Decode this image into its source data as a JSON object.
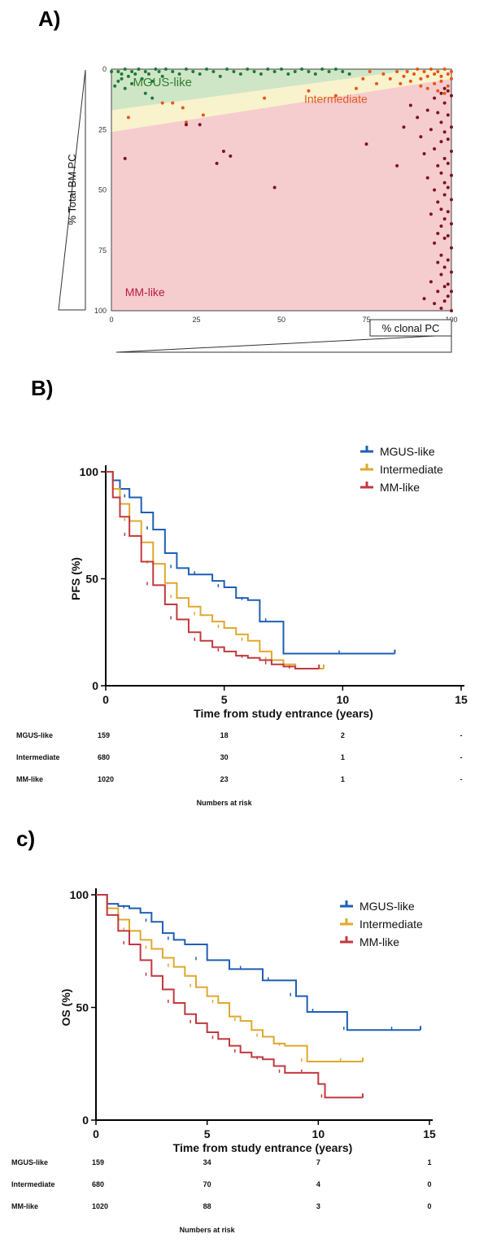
{
  "chart_data": [
    {
      "type": "scatter",
      "panel_label": "A)",
      "xlabel": "% clonal PC",
      "ylabel": "% Total BM PC",
      "xlim": [
        0,
        100
      ],
      "ylim": [
        0,
        100
      ],
      "y_inverted": true,
      "x_ticks": [
        "0",
        "25",
        "50",
        "75",
        "100"
      ],
      "y_ticks": [
        "0",
        "25",
        "50",
        "75",
        "100"
      ],
      "regions": [
        {
          "name": "MGUS-like",
          "color": "#cfe6c6",
          "text_color": "#2e7d32"
        },
        {
          "name": "Intermediate",
          "color": "#f8f3cc",
          "text_color": "#e25a1c"
        },
        {
          "name": "MM-like",
          "color": "#f6cdcf",
          "text_color": "#b71c3c"
        }
      ],
      "series": [
        {
          "name": "MGUS-like",
          "color": "#1f7a3c",
          "points": [
            [
              0,
              1
            ],
            [
              2,
              1
            ],
            [
              3,
              2
            ],
            [
              4,
              0
            ],
            [
              5,
              3
            ],
            [
              6,
              1
            ],
            [
              7,
              2
            ],
            [
              8,
              0
            ],
            [
              9,
              4
            ],
            [
              10,
              1
            ],
            [
              11,
              2
            ],
            [
              12,
              5
            ],
            [
              13,
              0
            ],
            [
              14,
              1
            ],
            [
              15,
              3
            ],
            [
              16,
              0
            ],
            [
              18,
              1
            ],
            [
              20,
              2
            ],
            [
              22,
              0
            ],
            [
              24,
              1
            ],
            [
              26,
              2
            ],
            [
              28,
              0
            ],
            [
              30,
              1
            ],
            [
              32,
              3
            ],
            [
              34,
              0
            ],
            [
              36,
              1
            ],
            [
              38,
              2
            ],
            [
              40,
              0
            ],
            [
              42,
              1
            ],
            [
              44,
              2
            ],
            [
              46,
              0
            ],
            [
              48,
              1
            ],
            [
              50,
              0
            ],
            [
              52,
              2
            ],
            [
              54,
              1
            ],
            [
              56,
              0
            ],
            [
              58,
              1
            ],
            [
              60,
              2
            ],
            [
              62,
              0
            ],
            [
              64,
              1
            ],
            [
              66,
              0
            ],
            [
              68,
              1
            ],
            [
              70,
              2
            ],
            [
              2,
              5
            ],
            [
              4,
              8
            ],
            [
              10,
              10
            ],
            [
              12,
              12
            ],
            [
              1,
              7
            ],
            [
              3,
              4
            ],
            [
              6,
              6
            ]
          ]
        },
        {
          "name": "Intermediate",
          "color": "#e8541a",
          "points": [
            [
              5,
              20
            ],
            [
              15,
              14
            ],
            [
              18,
              14
            ],
            [
              21,
              16
            ],
            [
              22,
              22
            ],
            [
              27,
              19
            ],
            [
              45,
              12
            ],
            [
              58,
              9
            ],
            [
              66,
              11
            ],
            [
              72,
              8
            ],
            [
              74,
              4
            ],
            [
              76,
              1
            ],
            [
              78,
              6
            ],
            [
              80,
              2
            ],
            [
              82,
              4
            ],
            [
              84,
              1
            ],
            [
              85,
              6
            ],
            [
              86,
              3
            ],
            [
              87,
              1
            ],
            [
              88,
              5
            ],
            [
              89,
              2
            ],
            [
              90,
              0
            ],
            [
              91,
              4
            ],
            [
              92,
              1
            ],
            [
              93,
              3
            ],
            [
              94,
              0
            ],
            [
              95,
              2
            ],
            [
              96,
              1
            ],
            [
              97,
              3
            ],
            [
              98,
              0
            ],
            [
              99,
              2
            ],
            [
              100,
              1
            ],
            [
              95,
              6
            ],
            [
              97,
              5
            ],
            [
              99,
              7
            ],
            [
              93,
              8
            ],
            [
              96,
              9
            ],
            [
              98,
              10
            ],
            [
              100,
              4
            ],
            [
              91,
              7
            ]
          ]
        },
        {
          "name": "MM-like",
          "color": "#7e1222",
          "points": [
            [
              4,
              37
            ],
            [
              22,
              23
            ],
            [
              26,
              23
            ],
            [
              31,
              39
            ],
            [
              33,
              34
            ],
            [
              35,
              36
            ],
            [
              48,
              49
            ],
            [
              75,
              31
            ],
            [
              84,
              40
            ],
            [
              86,
              24
            ],
            [
              88,
              15
            ],
            [
              90,
              20
            ],
            [
              91,
              28
            ],
            [
              92,
              35
            ],
            [
              92,
              95
            ],
            [
              93,
              17
            ],
            [
              93,
              45
            ],
            [
              94,
              25
            ],
            [
              94,
              60
            ],
            [
              94,
              88
            ],
            [
              95,
              12
            ],
            [
              95,
              33
            ],
            [
              95,
              50
            ],
            [
              95,
              72
            ],
            [
              95,
              97
            ],
            [
              96,
              18
            ],
            [
              96,
              40
            ],
            [
              96,
              55
            ],
            [
              96,
              68
            ],
            [
              96,
              80
            ],
            [
              96,
              92
            ],
            [
              97,
              10
            ],
            [
              97,
              22
            ],
            [
              97,
              30
            ],
            [
              97,
              43
            ],
            [
              97,
              58
            ],
            [
              97,
              65
            ],
            [
              97,
              77
            ],
            [
              97,
              85
            ],
            [
              97,
              99
            ],
            [
              98,
              8
            ],
            [
              98,
              14
            ],
            [
              98,
              26
            ],
            [
              98,
              37
            ],
            [
              98,
              47
            ],
            [
              98,
              52
            ],
            [
              98,
              62
            ],
            [
              98,
              70
            ],
            [
              98,
              82
            ],
            [
              98,
              90
            ],
            [
              98,
              96
            ],
            [
              99,
              9
            ],
            [
              99,
              19
            ],
            [
              99,
              29
            ],
            [
              99,
              39
            ],
            [
              99,
              49
            ],
            [
              99,
              59
            ],
            [
              99,
              69
            ],
            [
              99,
              79
            ],
            [
              99,
              89
            ],
            [
              99,
              94
            ],
            [
              100,
              11
            ],
            [
              100,
              24
            ],
            [
              100,
              34
            ],
            [
              100,
              44
            ],
            [
              100,
              54
            ],
            [
              100,
              64
            ],
            [
              100,
              74
            ],
            [
              100,
              84
            ],
            [
              100,
              92
            ],
            [
              100,
              100
            ]
          ]
        }
      ]
    },
    {
      "type": "line",
      "panel_label": "B)",
      "xlabel": "Time from study entrance (years)",
      "ylabel": "PFS (%)",
      "xlim": [
        0,
        15
      ],
      "ylim": [
        0,
        100
      ],
      "x_ticks": [
        "0",
        "5",
        "10",
        "15"
      ],
      "y_ticks": [
        "0",
        "50",
        "100"
      ],
      "legend_position": "top-right",
      "series": [
        {
          "name": "MGUS-like",
          "color": "#1f5fb5",
          "x": [
            0,
            0.3,
            0.6,
            1.0,
            1.5,
            2.0,
            2.5,
            3.0,
            3.5,
            4.0,
            4.5,
            5.0,
            5.5,
            6.0,
            6.5,
            7.0,
            7.5,
            12.2
          ],
          "y": [
            100,
            96,
            92,
            88,
            81,
            73,
            62,
            55,
            52,
            52,
            49,
            46,
            41,
            40,
            30,
            30,
            15,
            15
          ]
        },
        {
          "name": "Intermediate",
          "color": "#e0a82e",
          "x": [
            0,
            0.3,
            0.6,
            1.0,
            1.5,
            2.0,
            2.5,
            3.0,
            3.5,
            4.0,
            4.5,
            5.0,
            5.5,
            6.0,
            6.5,
            7.0,
            7.5,
            8.0,
            9.2
          ],
          "y": [
            100,
            92,
            85,
            77,
            67,
            57,
            48,
            41,
            37,
            33,
            30,
            27,
            24,
            21,
            16,
            12,
            10,
            8,
            8
          ]
        },
        {
          "name": "MM-like",
          "color": "#c2383f",
          "x": [
            0,
            0.3,
            0.6,
            1.0,
            1.5,
            2.0,
            2.5,
            3.0,
            3.5,
            4.0,
            4.5,
            5.0,
            5.5,
            6.0,
            6.5,
            7.0,
            7.5,
            8.0,
            9.0
          ],
          "y": [
            100,
            88,
            79,
            70,
            58,
            47,
            38,
            31,
            25,
            21,
            18,
            16,
            14,
            13,
            12,
            10,
            9,
            8,
            8
          ]
        }
      ],
      "risk_table": {
        "title": "Numbers at risk",
        "rows": [
          {
            "label": "MGUS-like",
            "values": [
              "159",
              "18",
              "2",
              "-"
            ]
          },
          {
            "label": "Intermediate",
            "values": [
              "680",
              "30",
              "1",
              "-"
            ]
          },
          {
            "label": "MM-like",
            "values": [
              "1020",
              "23",
              "1",
              "-"
            ]
          }
        ]
      }
    },
    {
      "type": "line",
      "panel_label": "c)",
      "xlabel": "Time from study entrance (years)",
      "ylabel": "OS (%)",
      "xlim": [
        0,
        15
      ],
      "ylim": [
        0,
        100
      ],
      "x_ticks": [
        "0",
        "5",
        "10",
        "15"
      ],
      "y_ticks": [
        "0",
        "50",
        "100"
      ],
      "legend_position": "top-right",
      "series": [
        {
          "name": "MGUS-like",
          "color": "#1f5fb5",
          "x": [
            0,
            0.5,
            1.0,
            1.5,
            2.0,
            2.5,
            3.0,
            3.5,
            4.0,
            5.0,
            6.0,
            7.0,
            7.5,
            8.0,
            8.5,
            9.0,
            9.5,
            10.0,
            11.0,
            11.3,
            12.0,
            14.6
          ],
          "y": [
            100,
            96,
            95,
            94,
            92,
            88,
            83,
            80,
            78,
            71,
            67,
            67,
            62,
            62,
            62,
            55,
            48,
            48,
            48,
            40,
            40,
            40
          ]
        },
        {
          "name": "Intermediate",
          "color": "#e0a82e",
          "x": [
            0,
            0.5,
            1.0,
            1.5,
            2.0,
            2.5,
            3.0,
            3.5,
            4.0,
            4.5,
            5.0,
            5.5,
            6.0,
            6.5,
            7.0,
            7.5,
            8.0,
            8.5,
            9.0,
            9.5,
            10.0,
            12.0
          ],
          "y": [
            100,
            94,
            89,
            84,
            80,
            76,
            72,
            68,
            64,
            59,
            55,
            52,
            46,
            44,
            40,
            37,
            34,
            33,
            33,
            26,
            26,
            26
          ]
        },
        {
          "name": "MM-like",
          "color": "#c2383f",
          "x": [
            0,
            0.5,
            1.0,
            1.5,
            2.0,
            2.5,
            3.0,
            3.5,
            4.0,
            4.5,
            5.0,
            5.5,
            6.0,
            6.5,
            7.0,
            7.5,
            8.0,
            8.5,
            9.0,
            9.5,
            10.0,
            10.3,
            12.0
          ],
          "y": [
            100,
            91,
            84,
            78,
            71,
            64,
            58,
            52,
            47,
            43,
            39,
            36,
            33,
            30,
            28,
            27,
            24,
            21,
            21,
            21,
            16,
            10,
            10
          ]
        }
      ],
      "risk_table": {
        "title": "Numbers at risk",
        "rows": [
          {
            "label": "MGUS-like",
            "values": [
              "159",
              "34",
              "7",
              "1"
            ]
          },
          {
            "label": "Intermediate",
            "values": [
              "680",
              "70",
              "4",
              "0"
            ]
          },
          {
            "label": "MM-like",
            "values": [
              "1020",
              "88",
              "3",
              "0"
            ]
          }
        ]
      }
    }
  ]
}
